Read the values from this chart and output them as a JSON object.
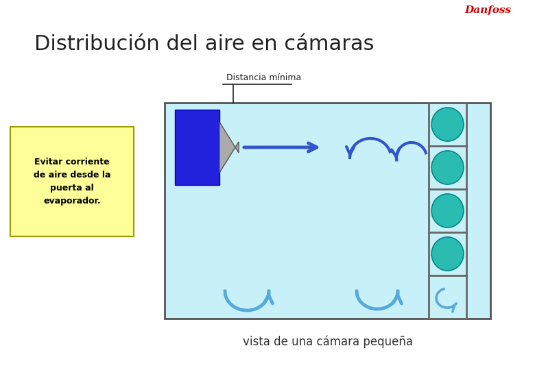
{
  "title": "Distribución del aire en cámaras",
  "title_fontsize": 22,
  "background_color": "#ffffff",
  "room_color": "#c8f0f8",
  "room_edge_color": "#555555",
  "evaporator_color": "#2222dd",
  "nozzle_color": "#aaaaaa",
  "shelf_color": "#666666",
  "product_color": "#2abcb0",
  "product_edge_color": "#008888",
  "label_distancia": "Distancia mínima",
  "label_evitar": "Evitar corriente\nde aire desde la\npuerta al\nevaporador.",
  "label_vista": "vista de una cámara pequeña",
  "arrow_color": "#3355cc",
  "arrow_color_light": "#55aadd",
  "note_box_color": "#ffff99",
  "note_box_edge": "#999900",
  "danfoss_color": "#cc0000"
}
